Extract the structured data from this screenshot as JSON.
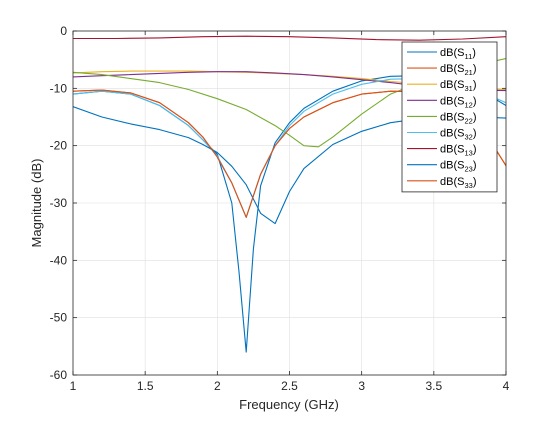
{
  "chart_data": {
    "type": "line",
    "title": "",
    "xlabel": "Frequency (GHz)",
    "ylabel": "Magnitude (dB)",
    "xlim": [
      1,
      4
    ],
    "ylim": [
      -60,
      0
    ],
    "xticks": [
      1,
      1.5,
      2,
      2.5,
      3,
      3.5,
      4
    ],
    "xtick_labels": [
      "1",
      "1.5",
      "2",
      "2.5",
      "3",
      "3.5",
      "4"
    ],
    "yticks": [
      -60,
      -50,
      -40,
      -30,
      -20,
      -10,
      0
    ],
    "ytick_labels": [
      "-60",
      "-50",
      "-40",
      "-30",
      "-20",
      "-10",
      "0"
    ],
    "grid": true,
    "legend_position": "top-right",
    "series": [
      {
        "name": "dB(S11)",
        "base": "dB(S",
        "sub": "11",
        "close": ")",
        "color": "#0072BD",
        "x": [
          1.0,
          1.2,
          1.4,
          1.6,
          1.8,
          1.9,
          2.0,
          2.1,
          2.15,
          2.2,
          2.25,
          2.3,
          2.4,
          2.5,
          2.6,
          2.8,
          3.0,
          3.2,
          3.4,
          3.6,
          3.8,
          4.0
        ],
        "y": [
          -11,
          -10.5,
          -11,
          -13,
          -16.5,
          -19,
          -21.5,
          -30,
          -42,
          -56,
          -38,
          -27,
          -19.5,
          -16,
          -13.5,
          -10.5,
          -8.7,
          -7.9,
          -7.8,
          -8.5,
          -10,
          -13
        ]
      },
      {
        "name": "dB(S21)",
        "base": "dB(S",
        "sub": "21",
        "close": ")",
        "color": "#D95319",
        "x": [
          1.0,
          1.2,
          1.4,
          1.6,
          1.8,
          1.9,
          2.0,
          2.1,
          2.2,
          2.3,
          2.4,
          2.5,
          2.6,
          2.8,
          3.0,
          3.2,
          3.4,
          3.6,
          3.8,
          4.0
        ],
        "y": [
          -10.5,
          -10.3,
          -10.8,
          -12.5,
          -16,
          -18.5,
          -22,
          -26.5,
          -32.5,
          -25,
          -20,
          -17,
          -15,
          -12.5,
          -11,
          -10.5,
          -10.6,
          -12,
          -15.5,
          -23.5
        ]
      },
      {
        "name": "dB(S31)",
        "base": "dB(S",
        "sub": "31",
        "close": ")",
        "color": "#EDB120",
        "x": [
          1.0,
          1.2,
          1.4,
          1.6,
          1.8,
          2.0,
          2.2,
          2.4,
          2.6,
          2.8,
          3.0,
          3.2,
          3.4,
          3.6,
          3.8,
          4.0
        ],
        "y": [
          -7.3,
          -7.1,
          -7.0,
          -7.0,
          -7.0,
          -7.1,
          -7.2,
          -7.4,
          -7.6,
          -7.9,
          -8.3,
          -8.8,
          -9.2,
          -9.6,
          -10.0,
          -10.2
        ]
      },
      {
        "name": "dB(S12)",
        "base": "dB(S",
        "sub": "12",
        "close": ")",
        "color": "#7E2F8E",
        "x": [
          1.0,
          1.2,
          1.4,
          1.6,
          1.8,
          2.0,
          2.2,
          2.4,
          2.6,
          2.8,
          3.0,
          3.2,
          3.4,
          3.6,
          3.8,
          4.0
        ],
        "y": [
          -8.0,
          -7.8,
          -7.6,
          -7.4,
          -7.2,
          -7.1,
          -7.1,
          -7.3,
          -7.6,
          -8.0,
          -8.5,
          -9.0,
          -9.6,
          -10.0,
          -10.3,
          -10.4
        ]
      },
      {
        "name": "dB(S22)",
        "base": "dB(S",
        "sub": "22",
        "close": ")",
        "color": "#77AC30",
        "x": [
          1.0,
          1.2,
          1.4,
          1.6,
          1.8,
          2.0,
          2.2,
          2.4,
          2.5,
          2.6,
          2.7,
          2.8,
          3.0,
          3.2,
          3.4,
          3.6,
          3.8,
          4.0
        ],
        "y": [
          -7.2,
          -7.6,
          -8.3,
          -9.0,
          -10.2,
          -11.8,
          -13.7,
          -16.5,
          -18.2,
          -20.0,
          -20.2,
          -18.5,
          -14.5,
          -11.0,
          -9.0,
          -7.2,
          -5.9,
          -4.8
        ]
      },
      {
        "name": "dB(S32)",
        "base": "dB(S",
        "sub": "32",
        "close": ")",
        "color": "#4DBEEE",
        "x": [
          1.0,
          1.2,
          1.4,
          1.6,
          1.8,
          1.9,
          2.0,
          2.1,
          2.2,
          2.3,
          2.4,
          2.5,
          2.6,
          2.8,
          3.0,
          3.2,
          3.4,
          3.6,
          3.8,
          4.0
        ],
        "y": [
          -11,
          -10.5,
          -11,
          -13,
          -16.5,
          -19,
          -21.8,
          -26.5,
          -32.5,
          -25,
          -20,
          -16.5,
          -14,
          -11,
          -9.3,
          -8.4,
          -8.3,
          -9,
          -10.3,
          -12.5
        ]
      },
      {
        "name": "dB(S13)",
        "base": "dB(S",
        "sub": "13",
        "close": ")",
        "color": "#A2142F",
        "x": [
          1.0,
          1.3,
          1.6,
          1.9,
          2.2,
          2.5,
          2.8,
          3.1,
          3.4,
          3.7,
          4.0
        ],
        "y": [
          -1.3,
          -1.3,
          -1.2,
          -1.0,
          -0.9,
          -1.0,
          -1.2,
          -1.5,
          -1.6,
          -1.4,
          -1.0
        ]
      },
      {
        "name": "dB(S23)",
        "base": "dB(S",
        "sub": "23",
        "close": ")",
        "color": "#0072BD",
        "x": [
          1.0,
          1.2,
          1.4,
          1.6,
          1.8,
          1.9,
          2.0,
          2.1,
          2.2,
          2.3,
          2.4,
          2.5,
          2.6,
          2.8,
          3.0,
          3.2,
          3.4,
          3.6,
          3.8,
          4.0
        ],
        "y": [
          -13.2,
          -15.0,
          -16.2,
          -17.2,
          -18.6,
          -19.8,
          -21.2,
          -23.6,
          -26.8,
          -31.8,
          -33.6,
          -28.0,
          -24.0,
          -19.8,
          -17.5,
          -16.0,
          -15.3,
          -15.0,
          -15.0,
          -15.2
        ]
      },
      {
        "name": "dB(S33)",
        "base": "dB(S",
        "sub": "33",
        "close": ")",
        "color": "#D95319",
        "x": [
          1.0,
          1.2,
          1.4,
          1.6,
          1.8,
          1.9,
          2.0,
          2.1,
          2.2,
          2.3,
          2.4,
          2.5,
          2.6,
          2.8,
          3.0,
          3.2,
          3.4,
          3.6,
          3.8,
          4.0
        ],
        "y": [
          -10.5,
          -10.3,
          -10.8,
          -12.5,
          -16,
          -18.5,
          -22,
          -26.5,
          -32.5,
          -25,
          -20,
          -17,
          -15,
          -12.5,
          -11,
          -10.5,
          -10.6,
          -12,
          -15.5,
          -23.5
        ]
      }
    ]
  }
}
